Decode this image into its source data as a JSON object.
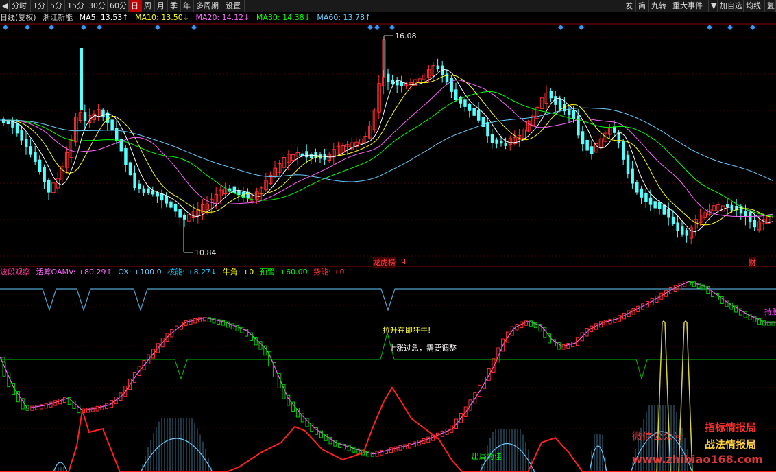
{
  "toolbar": {
    "left_items": [
      {
        "label": "◀",
        "name": "back-arrow-button",
        "active": false
      },
      {
        "label": "分时",
        "name": "tab-timeshare",
        "active": false
      },
      {
        "label": "1分",
        "name": "tab-1min",
        "active": false
      },
      {
        "label": "5分",
        "name": "tab-5min",
        "active": false
      },
      {
        "label": "15分",
        "name": "tab-15min",
        "active": false
      },
      {
        "label": "30分",
        "name": "tab-30min",
        "active": false
      },
      {
        "label": "60分",
        "name": "tab-60min",
        "active": false
      },
      {
        "label": "日",
        "name": "tab-day",
        "active": true
      },
      {
        "label": "周",
        "name": "tab-week",
        "active": false
      },
      {
        "label": "月",
        "name": "tab-month",
        "active": false
      },
      {
        "label": "季",
        "name": "tab-season",
        "active": false
      },
      {
        "label": "年",
        "name": "tab-year",
        "active": false
      },
      {
        "label": "多周期",
        "name": "tab-multi-period",
        "active": false
      },
      {
        "label": "设置",
        "name": "settings-button",
        "active": false
      }
    ],
    "right_items": [
      {
        "label": "发",
        "name": "publish-button"
      },
      {
        "label": "简",
        "name": "simple-button"
      },
      {
        "label": "九转",
        "name": "nine-turn-button"
      },
      {
        "label": "重大事件",
        "name": "major-events-button"
      },
      {
        "label": "▼",
        "name": "dropdown-arrow-button"
      },
      {
        "label": "加自选",
        "name": "add-watchlist-button"
      },
      {
        "label": "均线",
        "name": "moving-average-button"
      },
      {
        "label": "复",
        "name": "restore-button"
      }
    ]
  },
  "ma_legend": {
    "period": "日线(复权)",
    "stock": "浙江新能",
    "items": [
      {
        "label": "MA5: 13.53↑",
        "color": "#ffffff"
      },
      {
        "label": "MA10: 13.50↓",
        "color": "#ffff00"
      },
      {
        "label": "MA20: 14.12↓",
        "color": "#ff66ff"
      },
      {
        "label": "MA30: 14.38↓",
        "color": "#00ff00"
      },
      {
        "label": "MA60: 13.78↑",
        "color": "#66ccff"
      }
    ]
  },
  "price_labels": {
    "high": "16.08",
    "low": "10.84"
  },
  "markers": {
    "list": "龙虎榜",
    "q": "q",
    "fin": "财"
  },
  "indicator_legend": [
    {
      "label": "波段观察",
      "color": "#ff3399"
    },
    {
      "label": "活筹OAMV: +80.29↑",
      "color": "#ff66ff"
    },
    {
      "label": "OX: +100.0",
      "color": "#66ccff"
    },
    {
      "label": "核能: +8.27↓",
      "color": "#00ccff"
    },
    {
      "label": "牛角: +0",
      "color": "#ffff00"
    },
    {
      "label": "预警: +60.00",
      "color": "#00ff00"
    },
    {
      "label": "势能: +0",
      "color": "#ff3030"
    }
  ],
  "annotations": {
    "bull": "拉升在即狂牛!",
    "adjust": "上涨过急，需要调整",
    "exit": "出局为佳",
    "hold": "持股"
  },
  "watermark": {
    "wechat": "微信公众号",
    "name1": "指标情报局",
    "name2": "战法情报局",
    "url": "www.zhibiao168.com"
  },
  "colors": {
    "up": "#ff3030",
    "down": "#54ffff",
    "diamond": "#3399ff"
  }
}
